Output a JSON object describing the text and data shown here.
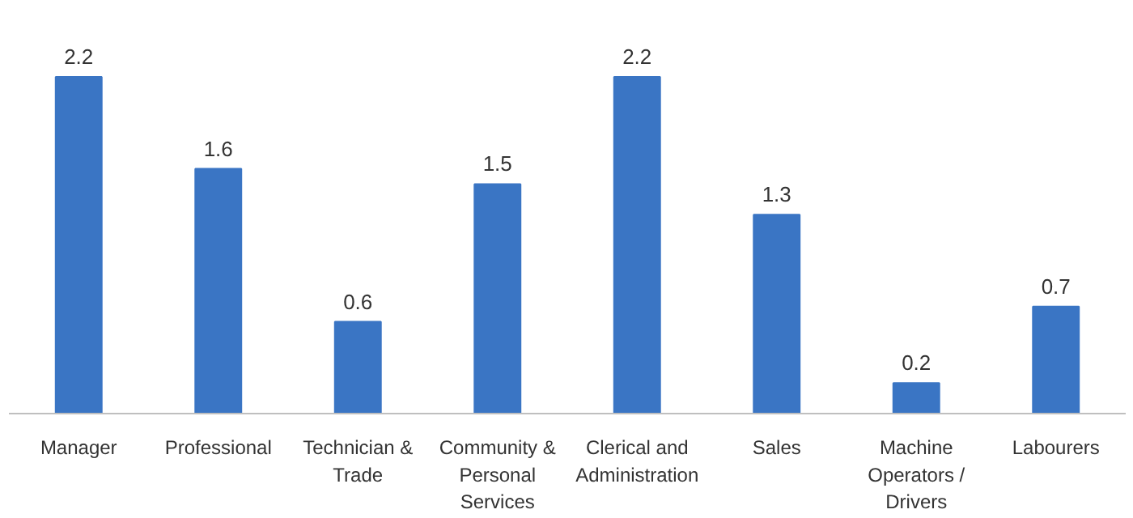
{
  "chart_data": {
    "type": "bar",
    "categories": [
      "Manager",
      "Professional",
      "Technician & Trade",
      "Community & Personal Services",
      "Clerical and Administration",
      "Sales",
      "Machine Operators / Drivers",
      "Labourers"
    ],
    "values": [
      2.2,
      1.6,
      0.6,
      1.5,
      2.2,
      1.3,
      0.2,
      0.7
    ],
    "color": "#3a75c4",
    "data_labels": true
  }
}
